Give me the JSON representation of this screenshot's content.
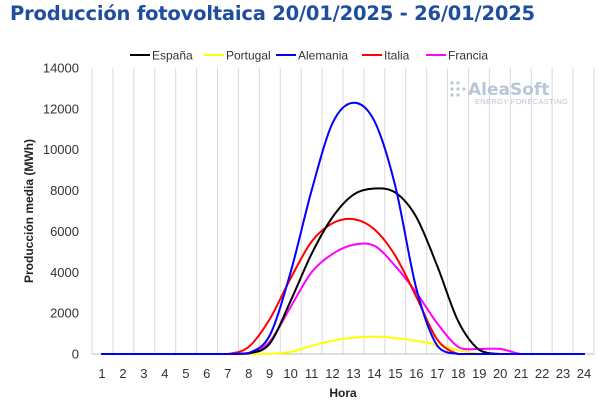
{
  "chart_data": {
    "type": "line",
    "title": "Producción fotovoltaica 20/01/2025 - 26/01/2025",
    "xlabel": "Hora",
    "ylabel": "Producción media (MWh)",
    "x": [
      1,
      2,
      3,
      4,
      5,
      6,
      7,
      8,
      9,
      10,
      11,
      12,
      13,
      14,
      15,
      16,
      17,
      18,
      19,
      20,
      21,
      22,
      23,
      24
    ],
    "y_ticks": [
      "0",
      "2000",
      "4000",
      "6000",
      "8000",
      "10000",
      "12000",
      "14000"
    ],
    "ylim": [
      0,
      14000
    ],
    "xlim": [
      1,
      24
    ],
    "grid": "vertical",
    "legend_position": "top",
    "series": [
      {
        "name": "España",
        "color": "#000000",
        "values": [
          0,
          0,
          0,
          0,
          0,
          0,
          0,
          30,
          500,
          2600,
          4900,
          6700,
          7800,
          8100,
          7900,
          6700,
          4300,
          1600,
          200,
          0,
          0,
          0,
          0,
          0
        ]
      },
      {
        "name": "Portugal",
        "color": "#ffff00",
        "values": [
          0,
          0,
          0,
          0,
          0,
          0,
          0,
          0,
          10,
          100,
          400,
          650,
          800,
          850,
          780,
          650,
          450,
          180,
          20,
          0,
          0,
          0,
          0,
          0
        ]
      },
      {
        "name": "Alemania",
        "color": "#0000ff",
        "values": [
          0,
          0,
          0,
          0,
          0,
          0,
          0,
          50,
          900,
          4000,
          8000,
          11300,
          12300,
          11400,
          8200,
          3200,
          400,
          0,
          0,
          0,
          0,
          0,
          0,
          0
        ]
      },
      {
        "name": "Italia",
        "color": "#ff0000",
        "values": [
          0,
          0,
          0,
          0,
          0,
          0,
          0,
          350,
          1700,
          3700,
          5500,
          6400,
          6600,
          6100,
          4800,
          2800,
          700,
          0,
          0,
          0,
          0,
          0,
          0,
          0
        ]
      },
      {
        "name": "Francia",
        "color": "#ff00ff",
        "values": [
          0,
          0,
          0,
          0,
          0,
          0,
          0,
          20,
          600,
          2300,
          4000,
          4900,
          5350,
          5300,
          4300,
          3000,
          1500,
          350,
          250,
          250,
          0,
          0,
          0,
          0
        ]
      }
    ],
    "watermark": {
      "name": "AleaSoft",
      "tagline": "ENERGY FORECASTING"
    }
  }
}
